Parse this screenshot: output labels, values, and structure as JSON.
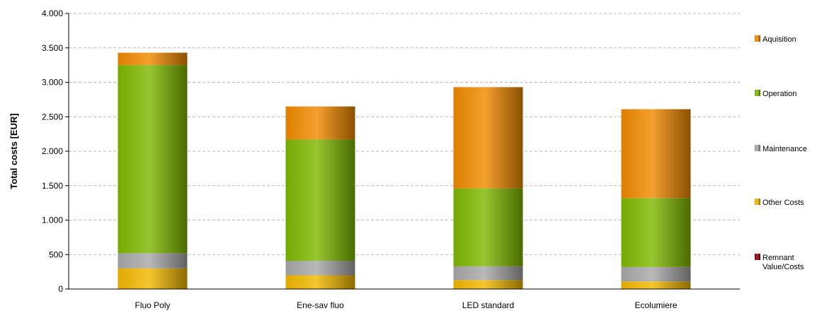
{
  "chart_data": {
    "type": "bar",
    "stacked": true,
    "ylabel": "Total costs [EUR]",
    "xlabel": "",
    "title": "",
    "ylim": [
      0,
      4000
    ],
    "yticks": [
      0,
      500,
      1000,
      1500,
      2000,
      2500,
      3000,
      3500,
      4000
    ],
    "ytick_labels": [
      "0",
      "500",
      "1.000",
      "1.500",
      "2.000",
      "2.500",
      "3.000",
      "3.500",
      "4.000"
    ],
    "grid": "horizontal-dashed",
    "legend_position": "right",
    "categories": [
      "Fluo Poly",
      "Ene-sav fluo",
      "LED standard",
      "Ecolumiere"
    ],
    "series": [
      {
        "name": "Remnant Value/Costs",
        "label_lines": [
          "Remnant",
          "Value/Costs"
        ],
        "color": "#8b0000",
        "values": [
          0,
          0,
          0,
          0
        ]
      },
      {
        "name": "Other Costs",
        "label_lines": [
          "Other Costs"
        ],
        "color": "#f2b800",
        "values": [
          300,
          200,
          130,
          110
        ]
      },
      {
        "name": "Maintenance",
        "label_lines": [
          "Maintenance"
        ],
        "color": "#a8a8a8",
        "values": [
          220,
          210,
          200,
          210
        ]
      },
      {
        "name": "Operation",
        "label_lines": [
          "Operation"
        ],
        "color": "#7fb800",
        "values": [
          2730,
          1760,
          1130,
          1000
        ]
      },
      {
        "name": "Aquisition",
        "label_lines": [
          "Aquisition"
        ],
        "color": "#f08a00",
        "values": [
          180,
          480,
          1470,
          1290
        ]
      }
    ],
    "legend_order": [
      "Aquisition",
      "Operation",
      "Maintenance",
      "Other Costs",
      "Remnant Value/Costs"
    ]
  }
}
